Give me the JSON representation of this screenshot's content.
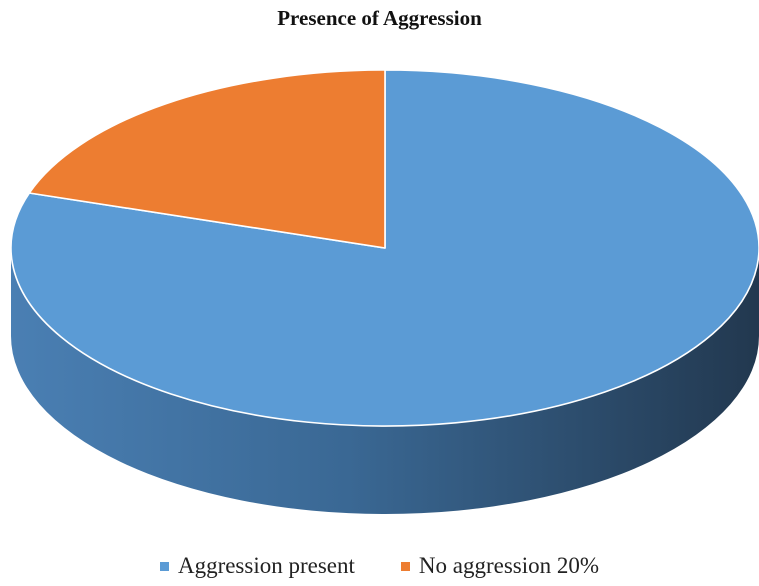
{
  "chart_data": {
    "type": "pie",
    "title": "Presence of Aggression",
    "style": "3d",
    "slices": [
      {
        "label": "Aggression present",
        "legend_text": "Aggression present",
        "value": 80,
        "color": "#5b9bd5"
      },
      {
        "label": "No aggression 20%",
        "legend_text": "No aggression 20%",
        "value": 20,
        "color": "#ed7d31"
      }
    ],
    "legend_position": "bottom"
  }
}
